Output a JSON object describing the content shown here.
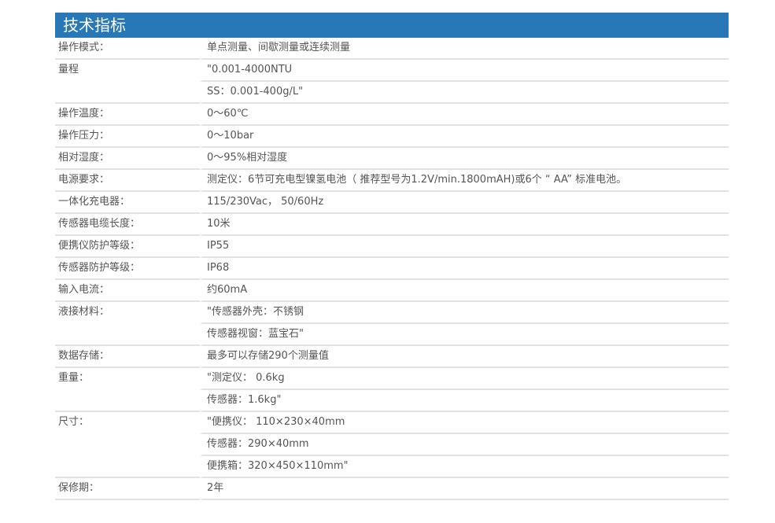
{
  "title": "技术指标",
  "rows": [
    {
      "label": "操作模式：",
      "values": [
        "单点测量、间歇测量或连续测量"
      ]
    },
    {
      "label": "量程",
      "values": [
        "\"0.001-4000NTU",
        "SS：0.001-400g/L\""
      ]
    },
    {
      "label": "操作温度：",
      "values": [
        "0～60℃"
      ]
    },
    {
      "label": "操作压力：",
      "values": [
        "0～10bar"
      ]
    },
    {
      "label": "相对湿度：",
      "values": [
        "0～95%相对湿度"
      ]
    },
    {
      "label": "电源要求：",
      "values": [
        "测定仪：6节可充电型镍氢电池（ 推荐型号为1.2V/min.1800mAH)或6个 “ AA” 标准电池。"
      ]
    },
    {
      "label": "一体化充电器：",
      "values": [
        "115/230Vac， 50/60Hz"
      ]
    },
    {
      "label": "传感器电缆长度：",
      "values": [
        "10米"
      ]
    },
    {
      "label": "便携仪防护等级：",
      "values": [
        "IP55"
      ]
    },
    {
      "label": "传感器防护等级：",
      "values": [
        "IP68"
      ]
    },
    {
      "label": "输入电流：",
      "values": [
        "约60mA"
      ]
    },
    {
      "label": "液接材料：",
      "values": [
        "\"传感器外壳：不锈钢",
        "传感器视窗：蓝宝石\""
      ]
    },
    {
      "label": "数据存储：",
      "values": [
        "最多可以存储290个测量值"
      ]
    },
    {
      "label": "重量：",
      "values": [
        "\"测定仪： 0.6kg",
        "传感器：1.6kg\""
      ]
    },
    {
      "label": "尺寸：",
      "values": [
        "\"便携仪： 110×230×40mm",
        "传感器：290×40mm",
        "便携箱：320×450×110mm\""
      ]
    },
    {
      "label": "保修期：",
      "values": [
        "2年"
      ]
    }
  ]
}
